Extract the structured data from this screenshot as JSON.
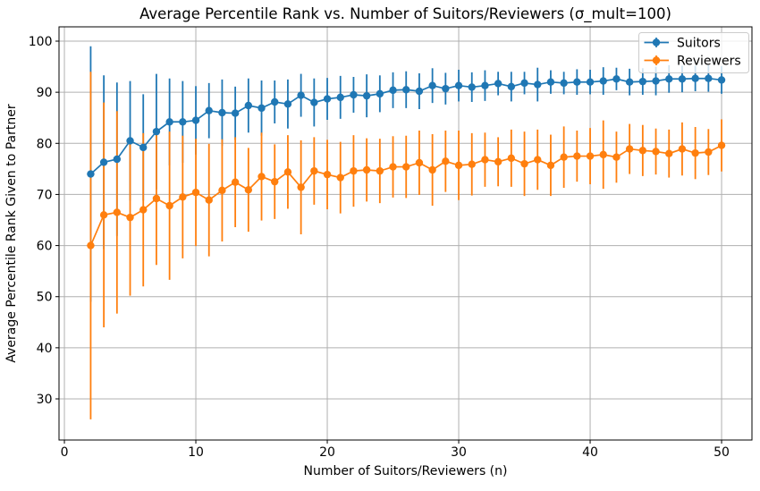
{
  "figure": {
    "title": "Average Percentile Rank vs. Number of Suitors/Reviewers (σ_mult=100)"
  },
  "chart_data": {
    "type": "line",
    "subtype": "errorbar",
    "title": "Average Percentile Rank vs. Number of Suitors/Reviewers (σ_mult=100)",
    "xlabel": "Number of Suitors/Reviewers (n)",
    "ylabel": "Average Percentile Rank Given to Partner",
    "x": [
      2,
      3,
      4,
      5,
      6,
      7,
      8,
      9,
      10,
      11,
      12,
      13,
      14,
      15,
      16,
      17,
      18,
      19,
      20,
      21,
      22,
      23,
      24,
      25,
      26,
      27,
      28,
      29,
      30,
      31,
      32,
      33,
      34,
      35,
      36,
      37,
      38,
      39,
      40,
      41,
      42,
      43,
      44,
      45,
      46,
      47,
      48,
      49,
      50
    ],
    "series": [
      {
        "name": "Suitors",
        "color": "#1f77b4",
        "values": [
          74.0,
          76.3,
          76.9,
          80.5,
          79.2,
          82.3,
          84.2,
          84.2,
          84.5,
          86.4,
          86.0,
          85.9,
          87.4,
          86.9,
          88.1,
          87.7,
          89.4,
          88.0,
          88.7,
          89.0,
          89.5,
          89.3,
          89.7,
          90.4,
          90.5,
          90.2,
          91.3,
          90.7,
          91.3,
          91.0,
          91.3,
          91.7,
          91.1,
          91.8,
          91.5,
          92.0,
          91.8,
          92.0,
          92.0,
          92.2,
          92.6,
          92.0,
          92.1,
          92.2,
          92.6,
          92.6,
          92.7,
          92.7,
          92.4
        ],
        "errors": [
          25.0,
          17.0,
          15.0,
          11.7,
          10.4,
          11.3,
          8.5,
          8.0,
          6.7,
          5.4,
          6.5,
          5.2,
          5.3,
          5.4,
          4.2,
          4.8,
          4.2,
          4.7,
          4.1,
          4.2,
          3.5,
          4.2,
          3.6,
          3.5,
          3.6,
          3.5,
          3.4,
          3.1,
          3.1,
          2.9,
          3.0,
          2.3,
          2.9,
          2.2,
          3.3,
          2.3,
          2.2,
          2.5,
          2.4,
          2.7,
          2.2,
          2.6,
          2.6,
          2.8,
          2.7,
          2.6,
          2.5,
          2.6,
          2.7
        ]
      },
      {
        "name": "Reviewers",
        "color": "#ff7f0e",
        "values": [
          60.0,
          66.0,
          66.5,
          65.5,
          67.0,
          69.2,
          67.8,
          69.5,
          70.4,
          68.9,
          70.8,
          72.4,
          70.9,
          73.5,
          72.5,
          74.4,
          71.4,
          74.6,
          73.9,
          73.3,
          74.6,
          74.8,
          74.6,
          75.4,
          75.4,
          76.2,
          74.8,
          76.5,
          75.7,
          75.9,
          76.8,
          76.4,
          77.1,
          76.0,
          76.8,
          75.7,
          77.3,
          77.5,
          77.5,
          77.8,
          77.3,
          78.9,
          78.6,
          78.4,
          78.0,
          78.9,
          78.1,
          78.3,
          79.6
        ],
        "errors": [
          34.0,
          22.0,
          19.8,
          15.3,
          15.0,
          13.0,
          14.5,
          12.0,
          10.5,
          11.0,
          10.0,
          8.8,
          8.2,
          8.6,
          7.3,
          7.2,
          9.2,
          6.6,
          6.8,
          7.0,
          7.0,
          6.2,
          6.3,
          6.0,
          6.1,
          6.3,
          7.0,
          6.0,
          6.8,
          6.1,
          5.3,
          4.8,
          5.6,
          6.3,
          5.9,
          6.0,
          6.0,
          5.0,
          5.5,
          6.7,
          5.0,
          4.9,
          5.0,
          4.5,
          4.7,
          5.2,
          5.1,
          4.5,
          5.1
        ]
      }
    ],
    "xticks": [
      0,
      10,
      20,
      30,
      40,
      50
    ],
    "yticks": [
      30,
      40,
      50,
      60,
      70,
      80,
      90,
      100
    ],
    "xlim": [
      -0.41,
      52.31
    ],
    "ylim": [
      21.95,
      102.8
    ],
    "grid": true,
    "grid_color": "#b0b0b0",
    "spine_color": "#000000",
    "legend": {
      "position": "upper right",
      "entries": [
        "Suitors",
        "Reviewers"
      ]
    },
    "marker": "o",
    "error_bars": true
  }
}
